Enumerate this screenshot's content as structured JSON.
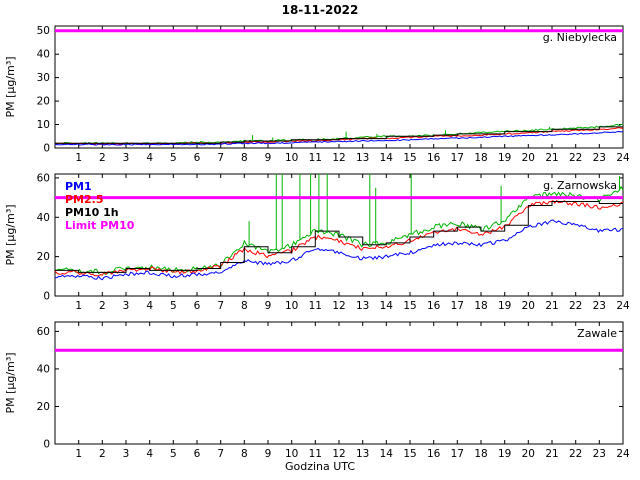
{
  "title": "18-11-2022",
  "xlabel": "Godzina UTC",
  "ylabel": "PM [µg/m³]",
  "colors": {
    "pm1": "#0000ff",
    "pm25": "#ff0000",
    "pm10": "#00b400",
    "pm10_1h": "#000000",
    "limit": "#ff00ff"
  },
  "legend": [
    "PM1",
    "PM2.5",
    "PM10 1h",
    "Limit PM10"
  ],
  "legend_colors": [
    "#0000ff",
    "#ff0000",
    "#000000",
    "#ff00ff"
  ],
  "chart_data": [
    {
      "type": "line",
      "station": "g. Niebylecka",
      "xlim": [
        0,
        24
      ],
      "xticks": [
        1,
        2,
        3,
        4,
        5,
        6,
        7,
        8,
        9,
        10,
        11,
        12,
        13,
        14,
        15,
        16,
        17,
        18,
        19,
        20,
        21,
        22,
        23,
        24
      ],
      "ylim": [
        0,
        52
      ],
      "yticks": [
        0,
        10,
        20,
        30,
        40,
        50
      ],
      "limit": 50,
      "legend": false,
      "series": [
        {
          "name": "PM10",
          "color": "pm10",
          "noise": 0.35,
          "values": [
            2,
            2,
            2,
            2,
            2,
            2,
            2.5,
            2.5,
            3,
            3,
            3.5,
            3.5,
            4,
            4.5,
            5,
            5,
            5.5,
            6,
            6.5,
            7,
            7.5,
            8,
            8.5,
            9,
            10
          ]
        },
        {
          "name": "PM2.5",
          "color": "pm25",
          "noise": 0.3,
          "values": [
            1.8,
            1.8,
            1.8,
            1.8,
            1.8,
            1.8,
            2,
            2,
            2.5,
            2.5,
            3,
            3,
            3.5,
            4,
            4.2,
            4.5,
            5,
            5.2,
            5.5,
            6,
            6.5,
            7,
            7.5,
            8,
            8.5
          ]
        },
        {
          "name": "PM1",
          "color": "pm1",
          "noise": 0.25,
          "values": [
            1.5,
            1.5,
            1.5,
            1.5,
            1.5,
            1.5,
            1.5,
            1.7,
            2,
            2,
            2.2,
            2.5,
            2.8,
            3,
            3.2,
            3.5,
            4,
            4.2,
            4.5,
            5,
            5.2,
            5.7,
            6,
            6.5,
            7
          ]
        },
        {
          "name": "PM10 1h",
          "color": "pm10_1h",
          "step": true,
          "values": [
            2,
            2,
            2,
            2,
            2,
            2,
            2,
            2.5,
            3,
            3,
            3.5,
            3.5,
            4,
            4,
            5,
            5,
            5.5,
            6,
            6,
            7,
            7,
            8,
            8,
            9
          ]
        }
      ],
      "spikes": [
        {
          "x": 8.35,
          "v": 5.5
        },
        {
          "x": 9.2,
          "v": 4.5
        },
        {
          "x": 12.3,
          "v": 7
        },
        {
          "x": 13.6,
          "v": 6
        },
        {
          "x": 16.5,
          "v": 7.5
        },
        {
          "x": 20.9,
          "v": 9
        }
      ]
    },
    {
      "type": "line",
      "station": "g. Zarnowska",
      "xlim": [
        0,
        24
      ],
      "xticks": [
        1,
        2,
        3,
        4,
        5,
        6,
        7,
        8,
        9,
        10,
        11,
        12,
        13,
        14,
        15,
        16,
        17,
        18,
        19,
        20,
        21,
        22,
        23,
        24
      ],
      "ylim": [
        0,
        62
      ],
      "yticks": [
        0,
        20,
        40,
        60
      ],
      "limit": 50,
      "legend": true,
      "series": [
        {
          "name": "PM10",
          "color": "pm10",
          "noise": 1.3,
          "values": [
            13,
            13,
            12,
            14,
            15,
            13,
            14,
            16,
            27,
            22,
            26,
            33,
            31,
            26,
            27,
            31,
            35,
            37,
            34,
            38,
            50,
            52,
            51,
            49,
            55
          ]
        },
        {
          "name": "PM2.5",
          "color": "pm25",
          "noise": 1.1,
          "values": [
            12,
            12,
            11,
            13,
            14,
            12,
            13,
            15,
            24,
            20,
            23,
            30,
            28,
            24,
            25,
            28,
            32,
            34,
            31,
            35,
            46,
            48,
            47,
            45,
            47
          ]
        },
        {
          "name": "PM1",
          "color": "pm1",
          "noise": 0.9,
          "values": [
            10,
            10,
            9,
            11,
            12,
            10,
            11,
            12,
            18,
            16,
            18,
            24,
            22,
            19,
            20,
            22,
            26,
            27,
            26,
            28,
            35,
            38,
            36,
            33,
            34
          ]
        },
        {
          "name": "PM10 1h",
          "color": "pm10_1h",
          "step": true,
          "values": [
            13,
            12,
            12,
            14,
            13,
            13,
            14,
            17,
            25,
            22,
            25,
            33,
            30,
            26,
            27,
            30,
            33,
            35,
            33,
            36,
            46,
            48,
            48,
            47
          ]
        }
      ],
      "spikes": [
        {
          "x": 8.2,
          "v": 38
        },
        {
          "x": 9.35,
          "v": 62
        },
        {
          "x": 9.6,
          "v": 62
        },
        {
          "x": 10.35,
          "v": 62
        },
        {
          "x": 10.8,
          "v": 62
        },
        {
          "x": 11.15,
          "v": 62
        },
        {
          "x": 11.5,
          "v": 62
        },
        {
          "x": 13.3,
          "v": 62
        },
        {
          "x": 13.55,
          "v": 55
        },
        {
          "x": 15.05,
          "v": 62
        },
        {
          "x": 18.85,
          "v": 56
        },
        {
          "x": 23.85,
          "v": 61
        }
      ]
    },
    {
      "type": "line",
      "station": "Zawale",
      "xlim": [
        0,
        24
      ],
      "xticks": [
        1,
        2,
        3,
        4,
        5,
        6,
        7,
        8,
        9,
        10,
        11,
        12,
        13,
        14,
        15,
        16,
        17,
        18,
        19,
        20,
        21,
        22,
        23,
        24
      ],
      "ylim": [
        0,
        65
      ],
      "yticks": [
        0,
        20,
        40,
        60
      ],
      "limit": 50,
      "legend": false,
      "series": [],
      "spikes": []
    }
  ]
}
